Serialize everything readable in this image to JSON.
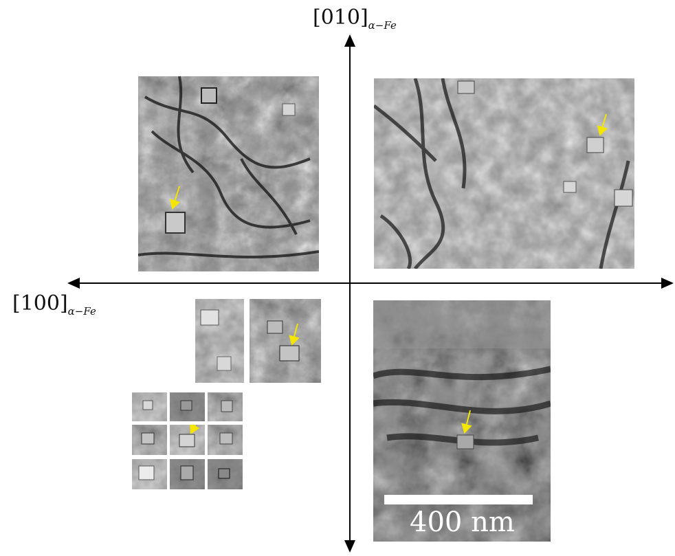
{
  "axes": {
    "vertical_label_main": "[010]",
    "vertical_label_sub": "α−Fe",
    "horizontal_label_main": "[100]",
    "horizontal_label_sub": "α−Fe"
  },
  "scale_bar": {
    "label": "400 nm"
  },
  "colors": {
    "arrow": "#f5e600",
    "axis": "#000000",
    "scale_bar": "#ffffff"
  }
}
